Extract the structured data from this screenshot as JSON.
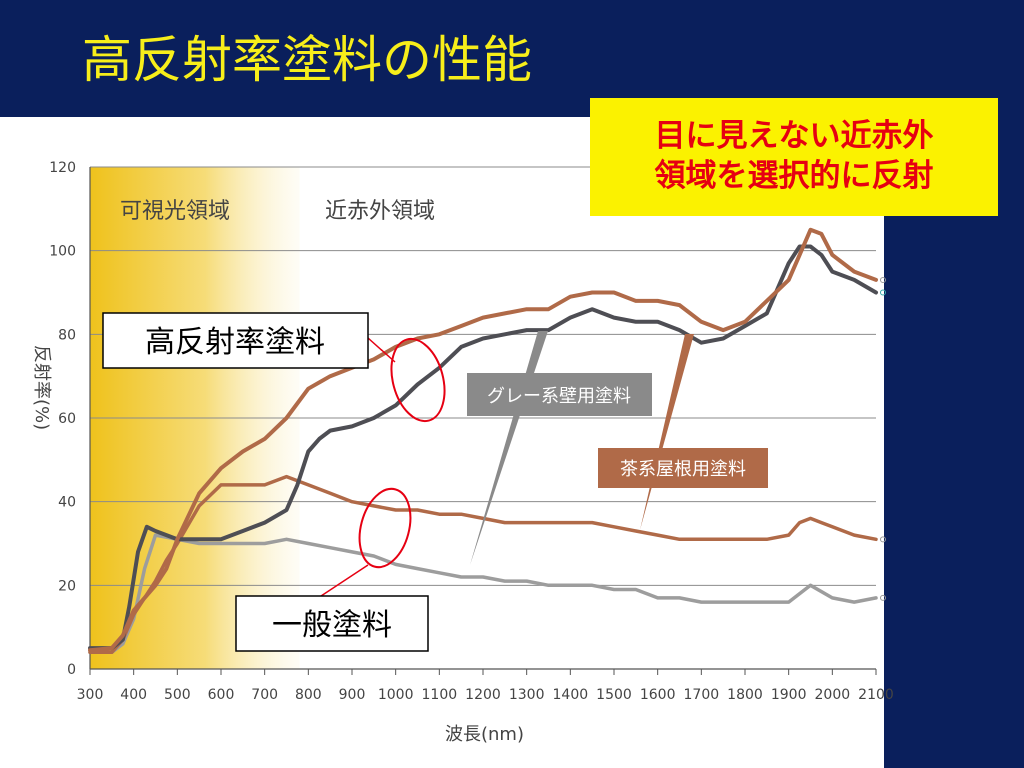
{
  "slide": {
    "title": "高反射率塗料の性能",
    "callout_line1": "目に見えない近赤外",
    "callout_line2": "領域を選択的に反射",
    "label_high": "高反射率塗料",
    "label_general": "一般塗料"
  },
  "colors": {
    "slide_bg": "#0a1f5c",
    "title": "#f7ee1a",
    "callout_bg": "#fbf200",
    "callout_text": "#e60012",
    "brown": "#b06a48",
    "dark": "#4e4e54",
    "gray": "#9d9d9d",
    "visible_band": "#f0c020",
    "annotation": "#e60012"
  },
  "chart_data": {
    "type": "line",
    "xlabel": "波長(nm)",
    "ylabel": "反射率(%)",
    "xlim": [
      300,
      2100
    ],
    "ylim": [
      0,
      120
    ],
    "xticks": [
      300,
      400,
      500,
      600,
      700,
      800,
      900,
      1000,
      1100,
      1200,
      1300,
      1400,
      1500,
      1600,
      1700,
      1800,
      1900,
      2000,
      2100
    ],
    "yticks": [
      0,
      20,
      40,
      60,
      80,
      100,
      120
    ],
    "regions": [
      {
        "label": "可視光領域",
        "from": 300,
        "to": 780
      },
      {
        "label": "近赤外領域",
        "from": 780,
        "to": 2100
      }
    ],
    "series": [
      {
        "name": "茶系屋根用塗料",
        "color": "#b06a48",
        "highlight": true,
        "x": [
          300,
          350,
          375,
          400,
          450,
          475,
          500,
          550,
          600,
          650,
          700,
          750,
          800,
          850,
          900,
          950,
          1000,
          1050,
          1100,
          1150,
          1200,
          1250,
          1300,
          1350,
          1400,
          1450,
          1500,
          1550,
          1600,
          1650,
          1700,
          1750,
          1800,
          1850,
          1900,
          1925,
          1950,
          1975,
          2000,
          2050,
          2100
        ],
        "y": [
          4.5,
          5,
          8,
          14,
          20,
          24,
          31,
          42,
          48,
          52,
          55,
          60,
          67,
          70,
          72,
          74,
          77,
          79,
          80,
          82,
          84,
          85,
          86,
          86,
          89,
          90,
          90,
          88,
          88,
          87,
          83,
          81,
          83,
          88,
          93,
          99,
          105,
          104,
          99,
          95,
          93
        ]
      },
      {
        "name": "グレー系壁用塗料",
        "color": "#4e4e54",
        "highlight": true,
        "x": [
          300,
          350,
          375,
          390,
          410,
          430,
          450,
          500,
          550,
          600,
          650,
          700,
          750,
          775,
          800,
          825,
          850,
          900,
          950,
          1000,
          1050,
          1100,
          1150,
          1200,
          1250,
          1300,
          1350,
          1400,
          1450,
          1500,
          1550,
          1600,
          1650,
          1700,
          1750,
          1800,
          1850,
          1900,
          1925,
          1950,
          1975,
          2000,
          2050,
          2100
        ],
        "y": [
          5,
          5,
          7,
          15,
          28,
          34,
          33,
          31,
          31,
          31,
          33,
          35,
          38,
          44,
          52,
          55,
          57,
          58,
          60,
          63,
          68,
          72,
          77,
          79,
          80,
          81,
          81,
          84,
          86,
          84,
          83,
          83,
          81,
          78,
          79,
          82,
          85,
          97,
          101,
          101,
          99,
          95,
          93,
          90
        ]
      },
      {
        "name": "一般塗料 (茶系)",
        "color": "#b06a48",
        "highlight": false,
        "x": [
          300,
          350,
          375,
          400,
          425,
          450,
          475,
          500,
          550,
          600,
          650,
          700,
          750,
          800,
          850,
          900,
          950,
          1000,
          1050,
          1100,
          1150,
          1200,
          1250,
          1300,
          1350,
          1400,
          1450,
          1500,
          1550,
          1600,
          1650,
          1700,
          1750,
          1800,
          1850,
          1900,
          1925,
          1950,
          1975,
          2000,
          2050,
          2100
        ],
        "y": [
          4,
          4,
          7,
          13,
          17,
          21,
          26,
          30,
          39,
          44,
          44,
          44,
          46,
          44,
          42,
          40,
          39,
          38,
          38,
          37,
          37,
          36,
          35,
          35,
          35,
          35,
          35,
          34,
          33,
          32,
          31,
          31,
          31,
          31,
          31,
          32,
          35,
          36,
          35,
          34,
          32,
          31
        ]
      },
      {
        "name": "一般塗料 (グレー系)",
        "color": "#9d9d9d",
        "highlight": false,
        "x": [
          300,
          350,
          375,
          400,
          425,
          450,
          500,
          550,
          600,
          650,
          700,
          750,
          800,
          850,
          900,
          950,
          1000,
          1050,
          1100,
          1150,
          1200,
          1250,
          1300,
          1350,
          1400,
          1450,
          1500,
          1550,
          1600,
          1650,
          1700,
          1750,
          1800,
          1850,
          1900,
          1950,
          2000,
          2050,
          2100
        ],
        "y": [
          4,
          4,
          6,
          12,
          24,
          32,
          31,
          30,
          30,
          30,
          30,
          31,
          30,
          29,
          28,
          27,
          25,
          24,
          23,
          22,
          22,
          21,
          21,
          20,
          20,
          20,
          19,
          19,
          17,
          17,
          16,
          16,
          16,
          16,
          16,
          20,
          17,
          16,
          17
        ]
      }
    ],
    "annotations": [
      {
        "text": "グレー系壁用塗料",
        "target": "グレー系壁用塗料"
      },
      {
        "text": "茶系屋根用塗料",
        "target": "茶系屋根用塗料"
      }
    ]
  }
}
